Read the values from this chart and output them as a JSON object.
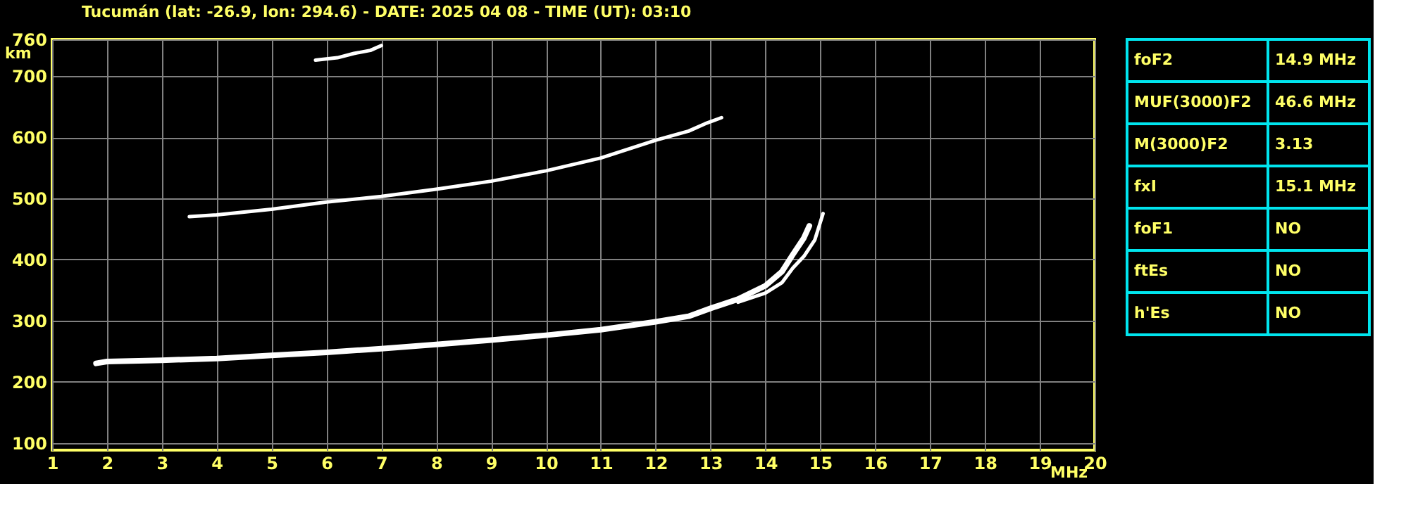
{
  "chart_data": [
    {
      "type": "line",
      "title": "Tucumán (lat: -26.9, lon: 294.6) - DATE: 2025 04 08 - TIME (UT): 03:10",
      "xlabel": "MHz",
      "ylabel": "km",
      "xlim": [
        1,
        20
      ],
      "ylim": [
        88,
        760
      ],
      "xticks": [
        1,
        2,
        3,
        4,
        5,
        6,
        7,
        8,
        9,
        10,
        11,
        12,
        13,
        14,
        15,
        16,
        17,
        18,
        19,
        20
      ],
      "yticks": [
        100,
        200,
        300,
        400,
        500,
        600,
        700,
        760
      ],
      "grid": true,
      "series": [
        {
          "color": "#ffffff",
          "x": [
            1.8,
            2,
            3,
            4,
            5,
            6,
            7,
            8,
            9,
            10,
            11,
            12,
            12.6,
            13,
            13.5,
            14,
            14.3,
            14.5,
            14.7,
            14.8
          ],
          "values": [
            230,
            233,
            235,
            238,
            243,
            248,
            254,
            261,
            268,
            276,
            285,
            298,
            307,
            320,
            335,
            357,
            380,
            408,
            435,
            455
          ]
        },
        {
          "color": "#ffffff",
          "x": [
            13.5,
            14,
            14.3,
            14.5,
            14.7,
            14.9,
            15.05
          ],
          "values": [
            330,
            345,
            362,
            386,
            405,
            432,
            475
          ]
        },
        {
          "color": "#ffffff",
          "x": [
            3.5,
            4,
            5,
            6,
            7,
            8,
            9,
            10,
            11,
            12,
            12.6,
            12.9,
            13.2
          ],
          "values": [
            470,
            473,
            482,
            494,
            503,
            515,
            528,
            545,
            566,
            595,
            610,
            622,
            632
          ]
        },
        {
          "color": "#ffffff",
          "x": [
            5.8,
            6.2,
            6.5,
            6.8,
            7
          ],
          "values": [
            726,
            730,
            737,
            742,
            750
          ]
        }
      ]
    },
    {
      "type": "other",
      "annotations": [
        "foF2",
        "14.9 MHz",
        "MUF(3000)F2",
        "46.6 MHz",
        "M(3000)F2",
        "3.13",
        "fxI",
        "15.1 MHz",
        "foF1",
        "NO",
        "ftEs",
        "NO",
        "h'Es",
        "NO"
      ]
    }
  ]
}
